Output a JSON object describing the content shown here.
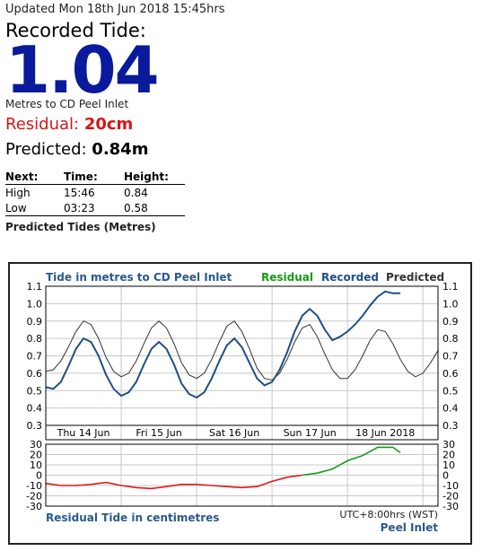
{
  "header": {
    "updated": "Updated Mon 18th Jun 2018 15:45hrs",
    "recorded_label": "Recorded Tide:",
    "recorded_value": "1.04",
    "recorded_unit": "Metres to CD Peel Inlet",
    "residual_label": "Residual: ",
    "residual_value": "20cm",
    "predicted_label": "Predicted: ",
    "predicted_value": "0.84m"
  },
  "tide_table": {
    "columns": [
      "Next:",
      "Time:",
      "Height:"
    ],
    "rows": [
      {
        "type": "High",
        "time": "15:46",
        "height": "0.84"
      },
      {
        "type": "Low",
        "time": "03:23",
        "height": "0.58"
      }
    ],
    "caption": "Predicted Tides (Metres)"
  },
  "chart_data": [
    {
      "type": "line",
      "title": "Tide in metres to CD Peel Inlet",
      "legend": [
        "Residual",
        "Recorded",
        "Predicted"
      ],
      "legend_placement": "top-right",
      "colors": {
        "residual": "#159a15",
        "recorded": "#1f4f86",
        "predicted": "#333333",
        "title": "#2a5a8c",
        "axis": "#000000",
        "grid": "#c8c8c8"
      },
      "ylim": [
        0.3,
        1.1
      ],
      "yticks": [
        "1.1",
        "1.0",
        "0.9",
        "0.8",
        "0.7",
        "0.6",
        "0.5",
        "0.4",
        "0.3"
      ],
      "ytick_values": [
        1.1,
        1.0,
        0.9,
        0.8,
        0.7,
        0.6,
        0.5,
        0.4,
        0.3
      ],
      "xlim": [
        0,
        5.2
      ],
      "xticks": [
        "Thu 14 Jun",
        "Fri 15 Jun",
        "Sat 16 Jun",
        "Sun 17 Jun",
        "18 Jun 2018"
      ],
      "xtick_positions": [
        0.5,
        1.5,
        2.5,
        3.5,
        4.5
      ],
      "grid": true,
      "series": [
        {
          "name": "Predicted",
          "x": [
            0.0,
            0.1,
            0.2,
            0.3,
            0.4,
            0.5,
            0.6,
            0.7,
            0.8,
            0.9,
            1.0,
            1.1,
            1.2,
            1.3,
            1.4,
            1.5,
            1.6,
            1.7,
            1.8,
            1.9,
            2.0,
            2.1,
            2.2,
            2.3,
            2.4,
            2.5,
            2.6,
            2.7,
            2.8,
            2.9,
            3.0,
            3.1,
            3.2,
            3.3,
            3.4,
            3.5,
            3.6,
            3.7,
            3.8,
            3.9,
            4.0,
            4.1,
            4.2,
            4.3,
            4.4,
            4.5,
            4.6,
            4.7,
            4.8,
            4.9,
            5.0,
            5.1,
            5.2
          ],
          "y": [
            0.61,
            0.62,
            0.67,
            0.75,
            0.84,
            0.9,
            0.88,
            0.8,
            0.69,
            0.61,
            0.58,
            0.6,
            0.67,
            0.77,
            0.86,
            0.9,
            0.86,
            0.77,
            0.66,
            0.59,
            0.57,
            0.6,
            0.68,
            0.78,
            0.87,
            0.9,
            0.84,
            0.74,
            0.63,
            0.57,
            0.56,
            0.6,
            0.68,
            0.78,
            0.86,
            0.88,
            0.81,
            0.71,
            0.62,
            0.57,
            0.57,
            0.62,
            0.7,
            0.79,
            0.85,
            0.84,
            0.77,
            0.68,
            0.61,
            0.58,
            0.6,
            0.66,
            0.73
          ]
        },
        {
          "name": "Recorded",
          "x": [
            0.0,
            0.1,
            0.2,
            0.3,
            0.4,
            0.5,
            0.6,
            0.7,
            0.8,
            0.9,
            1.0,
            1.1,
            1.2,
            1.3,
            1.4,
            1.5,
            1.6,
            1.7,
            1.8,
            1.9,
            2.0,
            2.1,
            2.2,
            2.3,
            2.4,
            2.5,
            2.6,
            2.7,
            2.8,
            2.9,
            3.0,
            3.1,
            3.2,
            3.3,
            3.4,
            3.5,
            3.6,
            3.7,
            3.8,
            3.9,
            4.0,
            4.1,
            4.2,
            4.3,
            4.4,
            4.5,
            4.6,
            4.7
          ],
          "y": [
            0.52,
            0.51,
            0.55,
            0.64,
            0.74,
            0.8,
            0.78,
            0.7,
            0.59,
            0.51,
            0.47,
            0.49,
            0.55,
            0.65,
            0.74,
            0.78,
            0.74,
            0.65,
            0.54,
            0.48,
            0.46,
            0.49,
            0.57,
            0.67,
            0.76,
            0.8,
            0.75,
            0.66,
            0.57,
            0.53,
            0.55,
            0.62,
            0.72,
            0.84,
            0.93,
            0.97,
            0.93,
            0.85,
            0.79,
            0.81,
            0.84,
            0.88,
            0.93,
            0.99,
            1.04,
            1.07,
            1.06,
            1.06
          ]
        }
      ]
    },
    {
      "type": "line",
      "title": "Residual Tide in centimetres",
      "timezone_note": "UTC+8:00hrs (WST)",
      "location": "Peel Inlet",
      "ylim": [
        -30,
        30
      ],
      "yticks": [
        "30",
        "20",
        "10",
        "0",
        "-10",
        "-20",
        "-30"
      ],
      "ytick_values": [
        30,
        20,
        10,
        0,
        -10,
        -20,
        -30
      ],
      "xlim": [
        0,
        5.2
      ],
      "grid": true,
      "colors": {
        "negative": "#e01818",
        "positive": "#159a15"
      },
      "series": [
        {
          "name": "Residual",
          "x": [
            0.0,
            0.2,
            0.4,
            0.6,
            0.8,
            1.0,
            1.2,
            1.4,
            1.6,
            1.8,
            2.0,
            2.2,
            2.4,
            2.6,
            2.8,
            3.0,
            3.2,
            3.4,
            3.6,
            3.8,
            4.0,
            4.2,
            4.4,
            4.6,
            4.7
          ],
          "y": [
            -8,
            -10,
            -10,
            -9,
            -7,
            -10,
            -12,
            -13,
            -11,
            -9,
            -9,
            -10,
            -11,
            -12,
            -11,
            -6,
            -2,
            0,
            2,
            6,
            14,
            19,
            27,
            27,
            22
          ]
        }
      ]
    }
  ]
}
